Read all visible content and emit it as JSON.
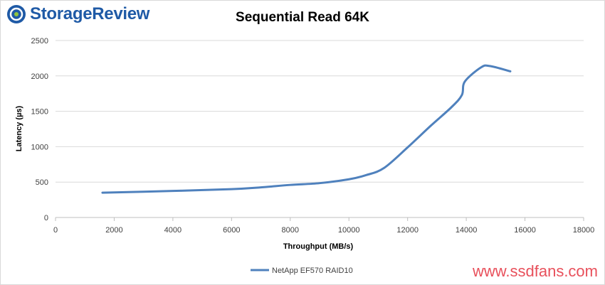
{
  "logo": {
    "text": "StorageReview",
    "icon": "storagereview-logo-icon",
    "color": "#1f5aa6"
  },
  "watermark": "www.ssdfans.com",
  "chart_data": {
    "type": "line",
    "title": "Sequential Read 64K",
    "xlabel": "Throughput (MB/s)",
    "ylabel": "Latency (µs)",
    "xlim": [
      0,
      18000
    ],
    "ylim": [
      0,
      2500
    ],
    "xticks": [
      0,
      2000,
      4000,
      6000,
      8000,
      10000,
      12000,
      14000,
      16000,
      18000
    ],
    "yticks": [
      0,
      500,
      1000,
      1500,
      2000,
      2500
    ],
    "grid": true,
    "legend_position": "bottom",
    "series": [
      {
        "name": "NetApp EF570 RAID10",
        "color": "#4f81bd",
        "x": [
          1600,
          4000,
          6000,
          7000,
          8000,
          9000,
          10000,
          10600,
          11200,
          12000,
          12800,
          13500,
          13850,
          13950,
          14500,
          14800,
          15500
        ],
        "y": [
          350,
          375,
          400,
          425,
          460,
          485,
          540,
          600,
          700,
          990,
          1300,
          1560,
          1730,
          1920,
          2120,
          2140,
          2065
        ]
      }
    ]
  }
}
